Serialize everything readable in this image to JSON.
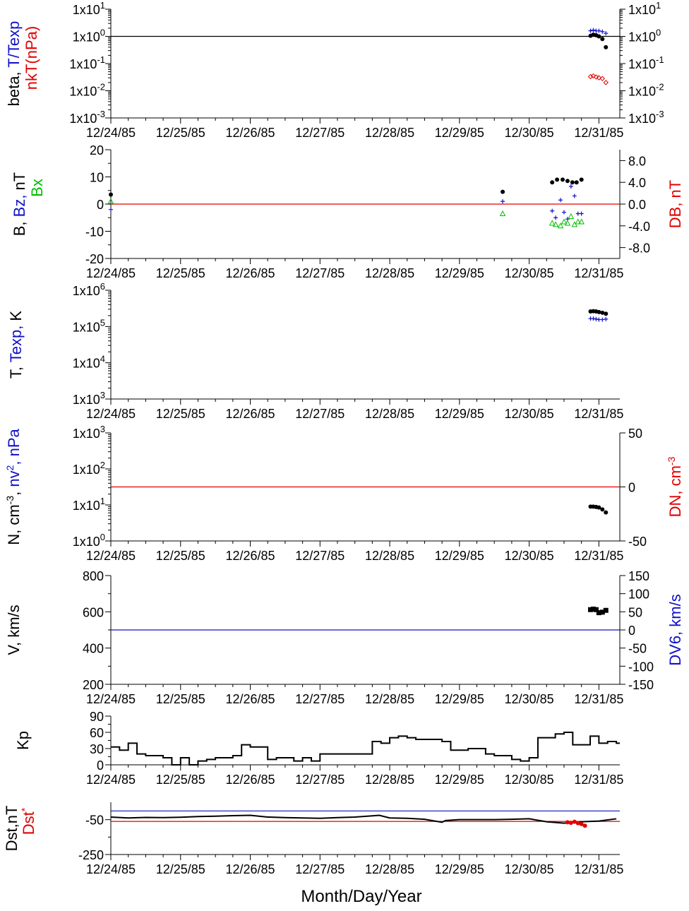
{
  "colors": {
    "black": "#000000",
    "blue": "#1010c8",
    "red": "#e00000",
    "green": "#00c000"
  },
  "x_ticks": [
    "12/24/85",
    "12/25/85",
    "12/26/85",
    "12/27/85",
    "12/28/85",
    "12/29/85",
    "12/30/85",
    "12/31/85"
  ],
  "chart_data": [
    {
      "type": "scatter",
      "panel": "beta",
      "ylabel_parts": [
        "beta, ",
        "T/Texp",
        "nkT(nPa)"
      ],
      "yscale": "log",
      "ylim": [
        0.001,
        10
      ],
      "y_ticks": [
        {
          "base": "1x10",
          "exp": "-3",
          "v": 0.001
        },
        {
          "base": "1x10",
          "exp": "-2",
          "v": 0.01
        },
        {
          "base": "1x10",
          "exp": "-1",
          "v": 0.1
        },
        {
          "base": "1x10",
          "exp": "0",
          "v": 1
        },
        {
          "base": "1x10",
          "exp": "1",
          "v": 10
        }
      ],
      "xlim": [
        0,
        7.3
      ],
      "ref_lines": [
        {
          "y": 1,
          "color": "black"
        }
      ],
      "series": [
        {
          "marker": "dot",
          "color": "black",
          "x": [
            6.88,
            6.92,
            6.96,
            7.0,
            7.05,
            7.1
          ],
          "y": [
            1.05,
            1.15,
            1.1,
            1.0,
            0.8,
            0.4
          ]
        },
        {
          "marker": "plus",
          "color": "blue",
          "x": [
            6.88,
            6.92,
            6.96,
            7.0,
            7.05,
            7.1
          ],
          "y": [
            1.6,
            1.7,
            1.6,
            1.6,
            1.5,
            1.3
          ]
        },
        {
          "marker": "diamond",
          "color": "red",
          "x": [
            6.88,
            6.92,
            6.96,
            7.0,
            7.05,
            7.1
          ],
          "y": [
            0.033,
            0.035,
            0.032,
            0.03,
            0.028,
            0.02
          ]
        }
      ]
    },
    {
      "type": "scatter",
      "panel": "magnetic-field",
      "ylabel_parts": [
        "B, ",
        "Bz, ",
        "nT",
        "Bx"
      ],
      "y2label": "DB, nT",
      "ylim": [
        -20,
        20
      ],
      "y_ticks": [
        -20,
        -10,
        0,
        10,
        20
      ],
      "y2lim": [
        -10,
        10
      ],
      "y2_ticks": [
        "-8.0",
        "-4.0",
        "0.0",
        "4.0",
        "8.0"
      ],
      "xlim": [
        0,
        7.3
      ],
      "ref_lines": [
        {
          "y": 0,
          "color": "red"
        }
      ],
      "series": [
        {
          "marker": "dot",
          "color": "black",
          "x": [
            0.0,
            5.62,
            6.33,
            6.4,
            6.48,
            6.55,
            6.62,
            6.68,
            6.75
          ],
          "y": [
            3.5,
            4.5,
            8.0,
            9.0,
            9.0,
            8.5,
            8.0,
            8.0,
            9.0
          ]
        },
        {
          "marker": "plus",
          "color": "blue",
          "x": [
            0.0,
            5.62,
            6.33,
            6.38,
            6.45,
            6.5,
            6.55,
            6.6,
            6.65,
            6.7,
            6.75
          ],
          "y": [
            -2.0,
            1.0,
            -2.5,
            -5.0,
            1.5,
            -3.0,
            -5.5,
            6.5,
            3.0,
            -3.5,
            -3.5
          ]
        },
        {
          "marker": "triangle",
          "color": "green",
          "x": [
            0.0,
            5.62,
            6.33,
            6.38,
            6.45,
            6.5,
            6.55,
            6.6,
            6.65,
            6.7,
            6.75
          ],
          "y": [
            1.0,
            -3.5,
            -7.0,
            -7.5,
            -8.0,
            -6.5,
            -7.0,
            -4.5,
            -7.5,
            -6.5,
            -6.5
          ]
        }
      ]
    },
    {
      "type": "scatter",
      "panel": "temperature",
      "ylabel_parts": [
        "T, ",
        "Texp, ",
        "K"
      ],
      "yscale": "log",
      "ylim": [
        1000,
        1000000
      ],
      "y_ticks": [
        {
          "base": "1x10",
          "exp": "3",
          "v": 1000
        },
        {
          "base": "1x10",
          "exp": "4",
          "v": 10000
        },
        {
          "base": "1x10",
          "exp": "5",
          "v": 100000
        },
        {
          "base": "1x10",
          "exp": "6",
          "v": 1000000
        }
      ],
      "xlim": [
        0,
        7.3
      ],
      "series": [
        {
          "marker": "dot",
          "color": "black",
          "x": [
            6.88,
            6.92,
            6.96,
            7.0,
            7.05,
            7.1
          ],
          "y": [
            260000,
            265000,
            260000,
            250000,
            240000,
            225000
          ]
        },
        {
          "marker": "plus",
          "color": "blue",
          "x": [
            6.88,
            6.92,
            6.96,
            7.0,
            7.05,
            7.1
          ],
          "y": [
            165000,
            165000,
            160000,
            155000,
            155000,
            160000
          ]
        }
      ]
    },
    {
      "type": "scatter",
      "panel": "density",
      "ylabel_parts": [
        "N, cm",
        "-3",
        ", ",
        "nv",
        "2",
        ", nPa"
      ],
      "y2label_parts": [
        "DN, cm",
        "-3"
      ],
      "yscale": "log",
      "ylim": [
        1,
        1000
      ],
      "y_ticks": [
        {
          "base": "1x10",
          "exp": "0",
          "v": 1
        },
        {
          "base": "1x10",
          "exp": "1",
          "v": 10
        },
        {
          "base": "1x10",
          "exp": "2",
          "v": 100
        },
        {
          "base": "1x10",
          "exp": "3",
          "v": 1000
        }
      ],
      "y2lim": [
        -50,
        50
      ],
      "y2_ticks": [
        "-50",
        "0",
        "50"
      ],
      "xlim": [
        0,
        7.3
      ],
      "ref_lines": [
        {
          "y2": 0,
          "color": "red"
        }
      ],
      "series": [
        {
          "marker": "dot",
          "color": "black",
          "x": [
            6.88,
            6.92,
            6.96,
            7.0,
            7.05,
            7.1
          ],
          "y": [
            9.0,
            9.0,
            8.8,
            8.5,
            7.5,
            6.2
          ]
        }
      ]
    },
    {
      "type": "scatter",
      "panel": "velocity",
      "ylabel": "V, km/s",
      "y2label": "DV6, km/s",
      "ylim": [
        200,
        800
      ],
      "y_ticks": [
        200,
        400,
        600,
        800
      ],
      "y2lim": [
        -150,
        150
      ],
      "y2_ticks": [
        "-150",
        "-100",
        "-50",
        "0",
        "50",
        "100",
        "150"
      ],
      "xlim": [
        0,
        7.3
      ],
      "ref_lines": [
        {
          "y2": 0,
          "color": "blue"
        }
      ],
      "series": [
        {
          "marker": "square",
          "color": "black",
          "x": [
            6.88,
            6.92,
            6.96,
            7.0,
            7.05,
            7.1
          ],
          "y": [
            612,
            615,
            612,
            595,
            598,
            608
          ]
        }
      ]
    },
    {
      "type": "line",
      "panel": "kp",
      "ylabel": "Kp",
      "ylim": [
        0,
        90
      ],
      "y_ticks": [
        0,
        30,
        60,
        90
      ],
      "xlim": [
        0,
        7.3
      ],
      "series": [
        {
          "step": true,
          "color": "black",
          "x": [
            0,
            0.125,
            0.25,
            0.375,
            0.5,
            0.625,
            0.75,
            0.875,
            1.0,
            1.125,
            1.25,
            1.375,
            1.5,
            1.625,
            1.75,
            1.875,
            2.0,
            2.125,
            2.25,
            2.375,
            2.5,
            2.625,
            2.75,
            2.875,
            3.0,
            3.125,
            3.25,
            3.375,
            3.5,
            3.625,
            3.75,
            3.875,
            4.0,
            4.125,
            4.25,
            4.375,
            4.5,
            4.625,
            4.75,
            4.875,
            5.0,
            5.125,
            5.25,
            5.375,
            5.5,
            5.625,
            5.75,
            5.875,
            6.0,
            6.125,
            6.25,
            6.375,
            6.5,
            6.625,
            6.75,
            6.875,
            7.0,
            7.125,
            7.25
          ],
          "y": [
            33,
            27,
            40,
            20,
            17,
            17,
            13,
            0,
            13,
            0,
            7,
            10,
            13,
            13,
            17,
            37,
            33,
            33,
            10,
            13,
            13,
            7,
            13,
            7,
            20,
            20,
            20,
            20,
            20,
            20,
            43,
            40,
            50,
            53,
            50,
            47,
            47,
            47,
            43,
            27,
            27,
            30,
            30,
            20,
            17,
            17,
            10,
            7,
            13,
            50,
            50,
            57,
            60,
            37,
            37,
            53,
            40,
            43,
            40
          ]
        }
      ]
    },
    {
      "type": "line",
      "panel": "dst",
      "ylabel_parts": [
        "Dst,nT",
        "Dst",
        "*"
      ],
      "ylim": [
        -250,
        50
      ],
      "y_ticks": [
        -250,
        -50
      ],
      "xlim": [
        0,
        7.3
      ],
      "ref_lines": [
        {
          "y": 0,
          "color": "blue"
        },
        {
          "y": -60,
          "color": "red"
        }
      ],
      "series": [
        {
          "color": "black",
          "x": [
            0,
            0.25,
            0.5,
            0.75,
            1.0,
            1.25,
            1.5,
            1.75,
            2.0,
            2.25,
            2.5,
            2.75,
            3.0,
            3.25,
            3.5,
            3.75,
            3.85,
            4.0,
            4.25,
            4.5,
            4.75,
            4.8,
            5.0,
            5.25,
            5.5,
            5.75,
            6.0,
            6.25,
            6.5,
            6.75,
            7.0,
            7.25
          ],
          "y": [
            -35,
            -40,
            -37,
            -38,
            -36,
            -32,
            -30,
            -27,
            -25,
            -35,
            -38,
            -40,
            -42,
            -38,
            -35,
            -28,
            -25,
            -40,
            -42,
            -48,
            -65,
            -55,
            -50,
            -50,
            -50,
            -48,
            -45,
            -62,
            -70,
            -62,
            -58,
            -45
          ]
        },
        {
          "marker": "dot",
          "color": "red",
          "x": [
            6.55,
            6.6,
            6.65,
            6.7,
            6.75,
            6.8
          ],
          "y": [
            -65,
            -68,
            -62,
            -70,
            -75,
            -85
          ]
        }
      ]
    }
  ],
  "xlabel": "Month/Day/Year"
}
